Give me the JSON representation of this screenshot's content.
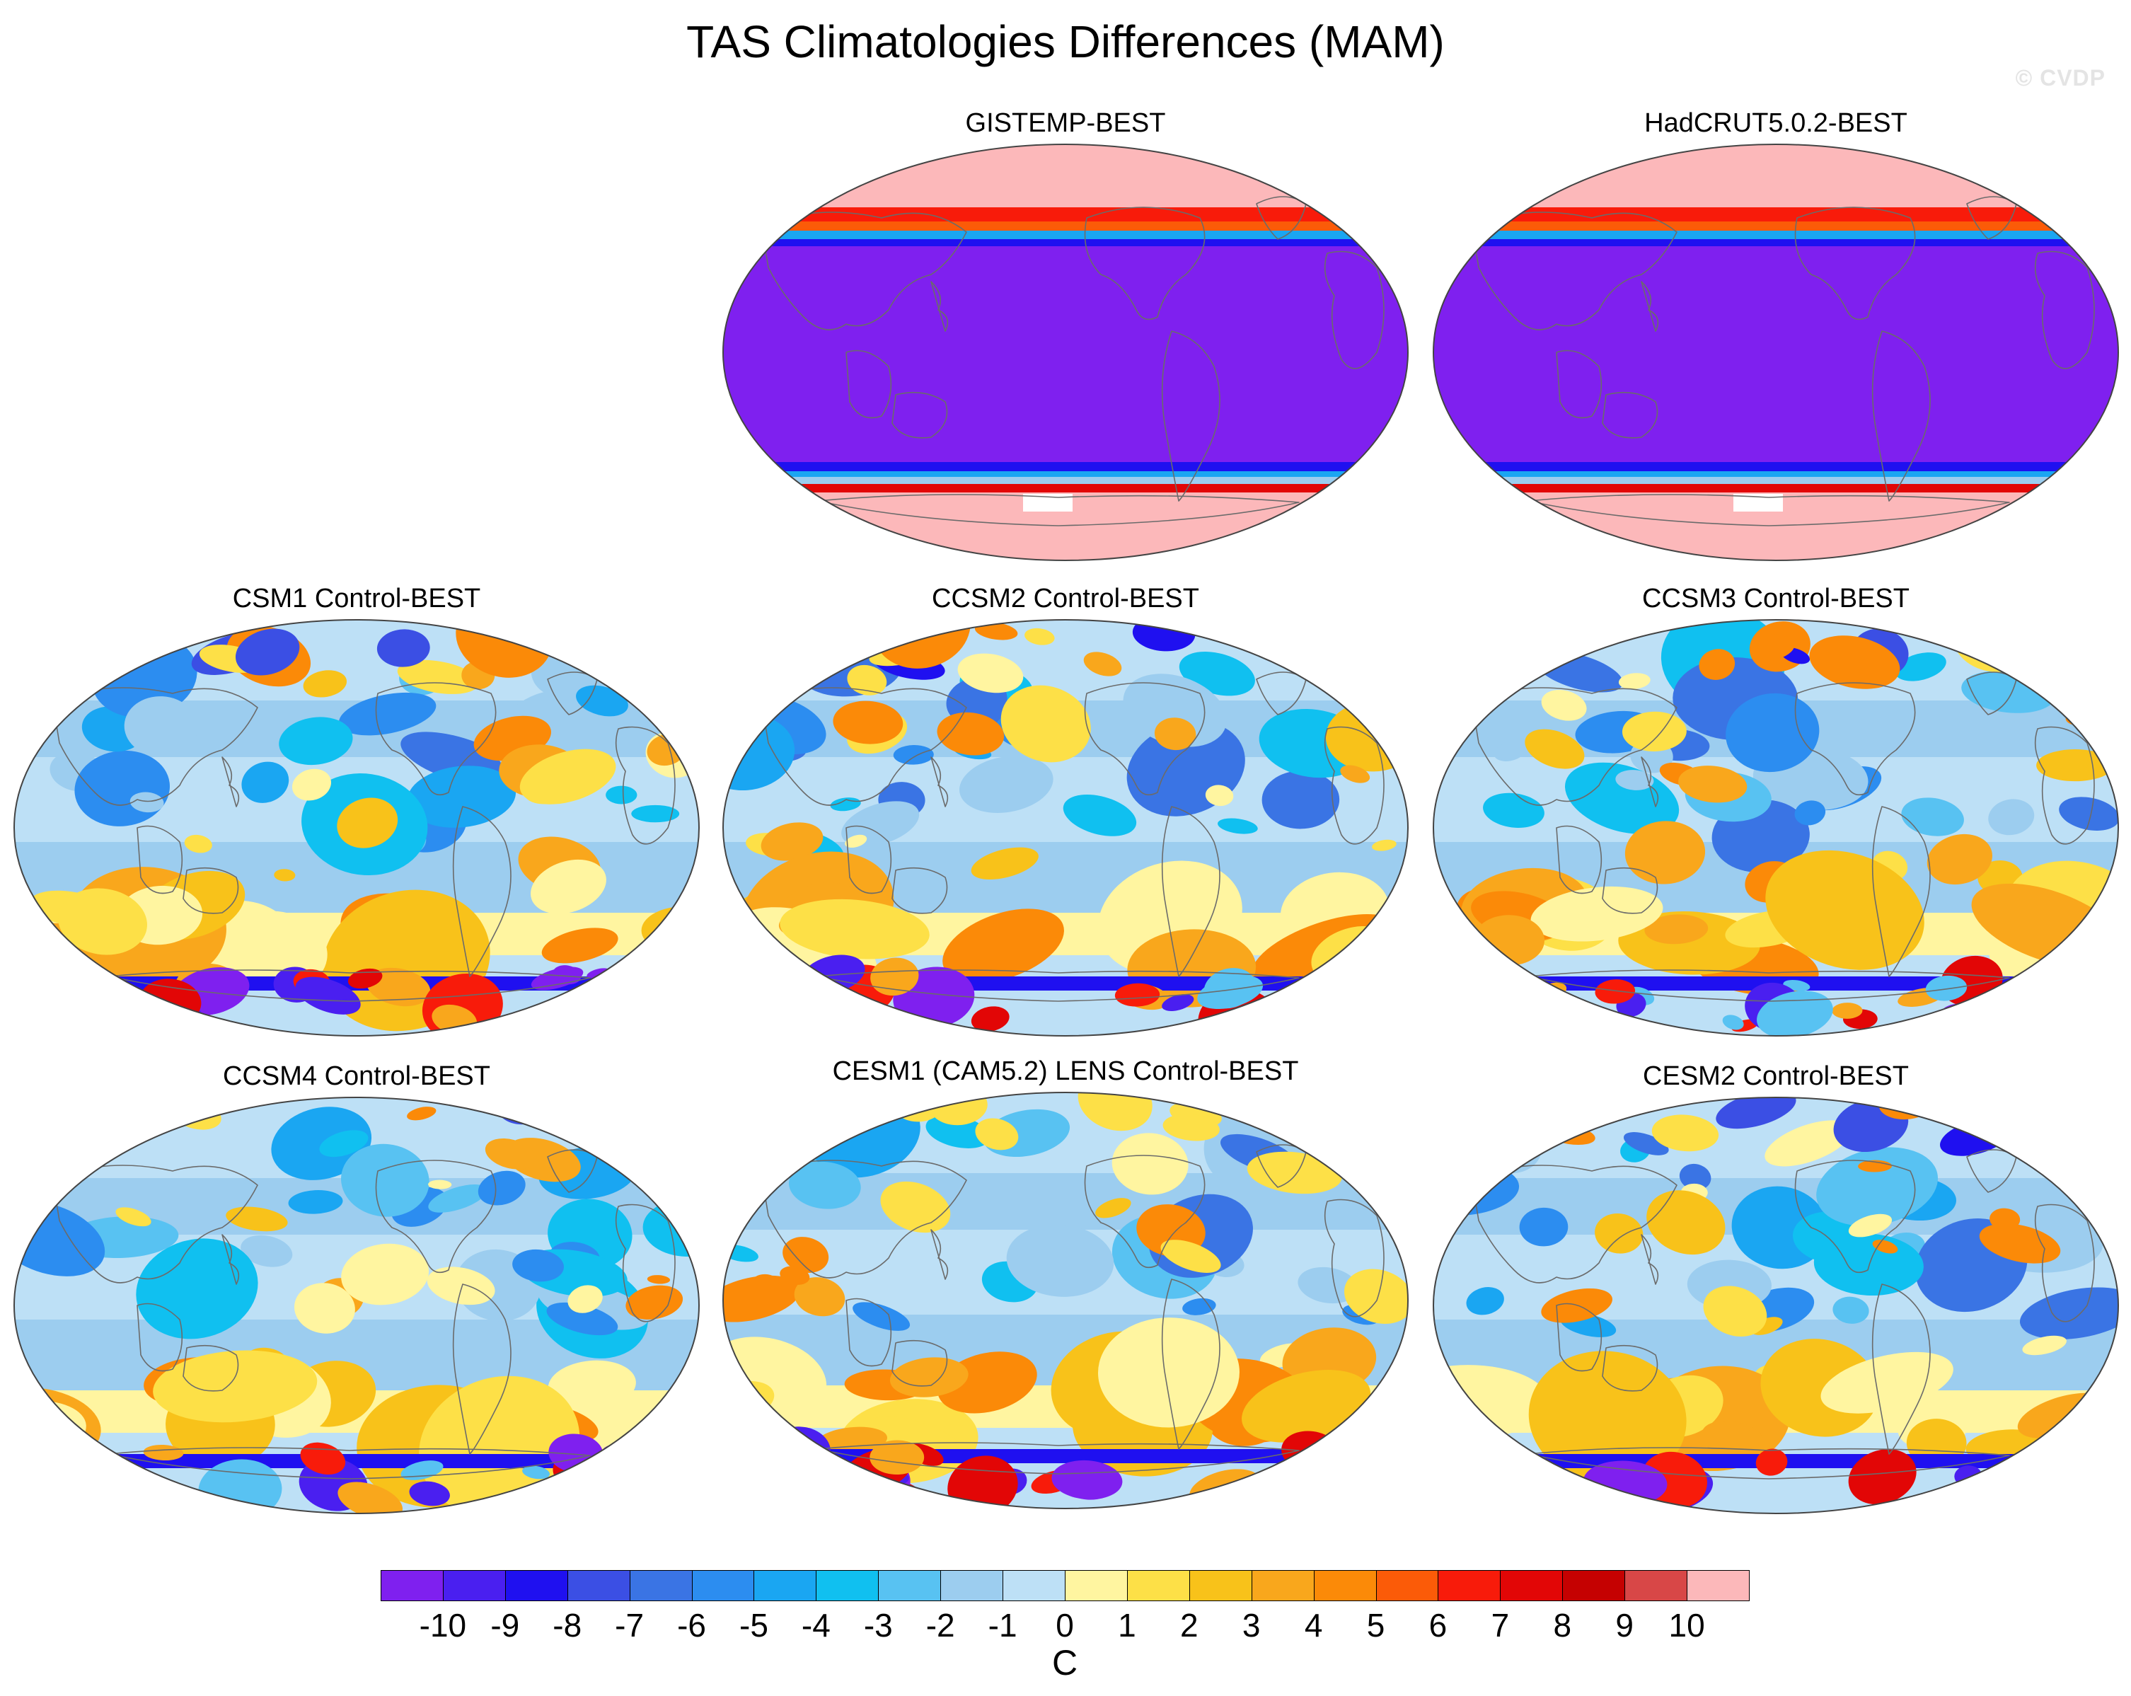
{
  "figure": {
    "title": "TAS Climatologies Differences (MAM)",
    "watermark": "© CVDP"
  },
  "panels": [
    {
      "id": "gistemp",
      "title": "GISTEMP-BEST",
      "type": "obs"
    },
    {
      "id": "hadcrut",
      "title": "HadCRUT5.0.2-BEST",
      "type": "obs"
    },
    {
      "id": "csm1",
      "title": "CSM1 Control-BEST",
      "type": "model"
    },
    {
      "id": "ccsm2",
      "title": "CCSM2 Control-BEST",
      "type": "model"
    },
    {
      "id": "ccsm3",
      "title": "CCSM3 Control-BEST",
      "type": "model"
    },
    {
      "id": "ccsm4",
      "title": "CCSM4 Control-BEST",
      "type": "model"
    },
    {
      "id": "cesm1",
      "title": "CESM1 (CAM5.2) LENS Control-BEST",
      "type": "model"
    },
    {
      "id": "cesm2",
      "title": "CESM2 Control-BEST",
      "type": "model"
    }
  ],
  "colorbar": {
    "unit": "C",
    "tick_labels": [
      "-10",
      "-9",
      "-8",
      "-7",
      "-6",
      "-5",
      "-4",
      "-3",
      "-2",
      "-1",
      "0",
      "1",
      "2",
      "3",
      "4",
      "5",
      "6",
      "7",
      "8",
      "9",
      "10"
    ],
    "colors": [
      "#7f20ef",
      "#4a1ff0",
      "#1f10f0",
      "#3b4fe4",
      "#3a74e4",
      "#2c8df0",
      "#1aa6f2",
      "#10c0f0",
      "#58c2f2",
      "#9ccdef",
      "#bde0f6",
      "#fff5a0",
      "#fde047",
      "#f8c21a",
      "#f9a71c",
      "#fb8a08",
      "#fb5b08",
      "#f81b0a",
      "#e20606",
      "#c50101",
      "#d84747",
      "#fcb8ba"
    ]
  },
  "icons": {
    "coastline": "world-coastline-icon"
  }
}
